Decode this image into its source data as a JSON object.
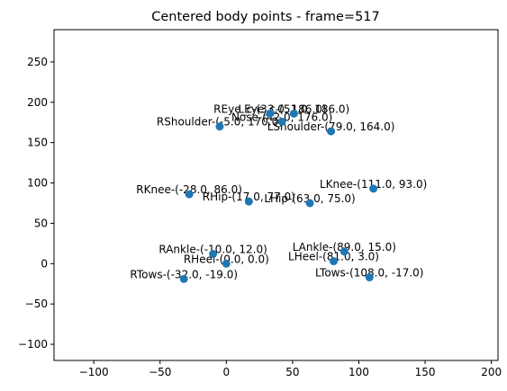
{
  "chart_data": {
    "type": "scatter",
    "title": "Centered body points - frame=517",
    "xlabel": "",
    "ylabel": "",
    "xlim": [
      -130,
      205
    ],
    "ylim": [
      -120,
      290
    ],
    "grid": false,
    "color": "#1f77b4",
    "xticks": [
      -100,
      -50,
      0,
      50,
      100,
      150,
      200
    ],
    "yticks": [
      -100,
      -50,
      0,
      50,
      100,
      150,
      200,
      250
    ],
    "xtick_labels": [
      "−100",
      "−50",
      "0",
      "50",
      "100",
      "150",
      "200"
    ],
    "ytick_labels": [
      "−100",
      "−50",
      "0",
      "50",
      "100",
      "150",
      "200",
      "250"
    ],
    "points": [
      {
        "label": "LEye_c-(51.0, 186.0)",
        "x": 51,
        "y": 186
      },
      {
        "label": "REye_c-(33.0, 186.0)",
        "x": 33,
        "y": 186
      },
      {
        "label": "Nose-(42.0, 176.0)",
        "x": 42,
        "y": 176
      },
      {
        "label": "RShoulder-(-5.0, 170.0)",
        "x": -5,
        "y": 170
      },
      {
        "label": "LShoulder-(79.0, 164.0)",
        "x": 79,
        "y": 164
      },
      {
        "label": "LKnee-(111.0, 93.0)",
        "x": 111,
        "y": 93
      },
      {
        "label": "RKnee-(-28.0, 86.0)",
        "x": -28,
        "y": 86
      },
      {
        "label": "RHip-(17.0, 77.0)",
        "x": 17,
        "y": 77
      },
      {
        "label": "LHip-(63.0, 75.0)",
        "x": 63,
        "y": 75
      },
      {
        "label": "LAnkle-(89.0, 15.0)",
        "x": 89,
        "y": 15
      },
      {
        "label": "RAnkle-(-10.0, 12.0)",
        "x": -10,
        "y": 12
      },
      {
        "label": "LHeel-(81.0, 3.0)",
        "x": 81,
        "y": 3
      },
      {
        "label": "RHeel-(0.0, 0.0)",
        "x": 0,
        "y": 0
      },
      {
        "label": "LTows-(108.0, -17.0)",
        "x": 108,
        "y": -17
      },
      {
        "label": "RTows-(-32.0, -19.0)",
        "x": -32,
        "y": -19
      }
    ]
  }
}
